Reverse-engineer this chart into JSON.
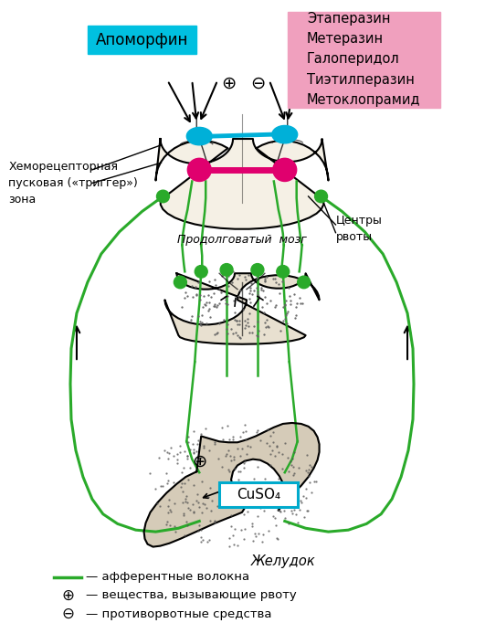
{
  "bg_color": "#ffffff",
  "green_color": "#2aaa2a",
  "pink_color": "#e0006e",
  "cyan_node_color": "#00b0d8",
  "cyan_box_color": "#00c0e0",
  "pink_box_color": "#f0a0be",
  "title_apomorfin": "Апоморфин",
  "title_drugs": "Этаперазин\nМетеразин\nГалоперидол\nТиэтилперазин\nМетоклопрамид",
  "label_chemo": "Хеморецепторная\nпусковая («триггер»)\nзона",
  "label_centers": "Центры\nрвоты",
  "label_medulla": "Продолговатый  мозг",
  "label_stomach": "Желудок",
  "label_cuso4": "CuSO₄",
  "legend1": "— афферентные волокна",
  "legend2": "— вещества, вызывающие рвоту",
  "legend3": "— противорвотные средства",
  "plus_symbol": "⊕",
  "minus_symbol": "⊖"
}
